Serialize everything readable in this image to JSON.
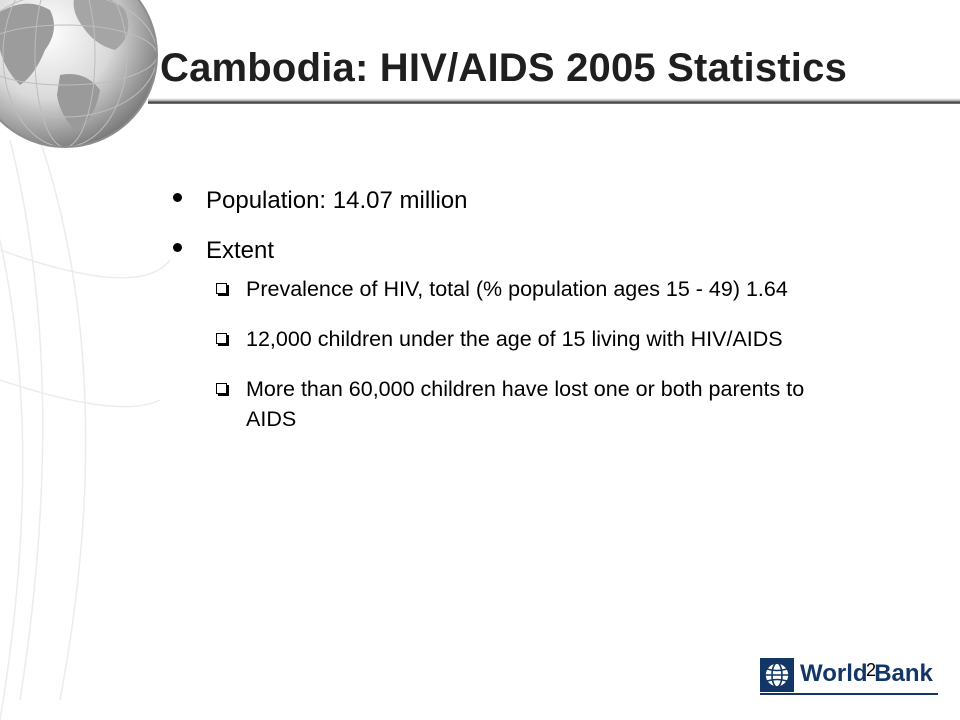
{
  "slide": {
    "title": "Cambodia: HIV/AIDS 2005 Statistics",
    "bullets": [
      {
        "text": "Population: 14.07 million"
      },
      {
        "text": "Extent"
      }
    ],
    "sub_bullets": [
      {
        "text": "Prevalence of HIV, total (% population ages 15 - 49) 1.64"
      },
      {
        "text": "12,000 children under the age of 15 living with HIV/AIDS"
      },
      {
        "text": "More than 60,000 children have lost one or both parents to AIDS"
      }
    ],
    "logo_text": "World Bank",
    "page_number": "2"
  },
  "colors": {
    "title_text": "#1f1f1f",
    "logo_blue": "#123766",
    "background": "#ffffff"
  },
  "icons": {
    "globe": "globe-icon",
    "bullet": "round-bullet-icon",
    "sub_bullet": "hollow-square-bullet-icon",
    "logo": "world-bank-logo-icon"
  }
}
